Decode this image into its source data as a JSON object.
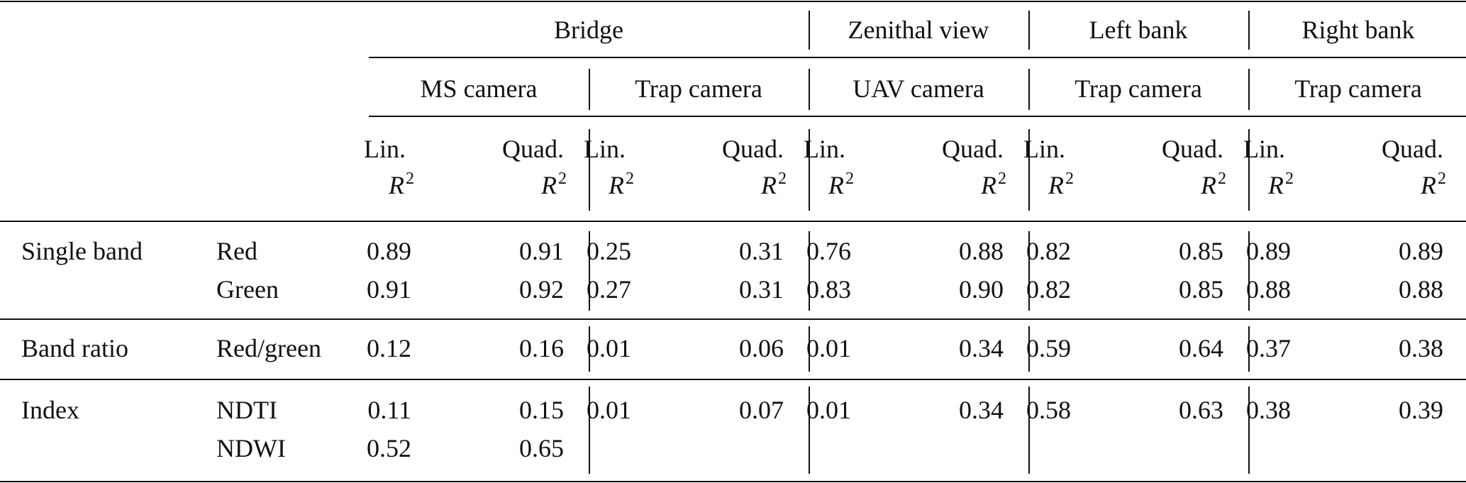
{
  "groups": [
    "Bridge",
    "Zenithal view",
    "Left bank",
    "Right bank"
  ],
  "cameras": [
    "MS camera",
    "Trap camera",
    "UAV camera",
    "Trap camera",
    "Trap camera"
  ],
  "metric_head": {
    "lin": "Lin.",
    "quad": "Quad.",
    "r": "R",
    "exp": "2"
  },
  "categories": [
    "Single band",
    "Band ratio",
    "Index"
  ],
  "bands": [
    "Red",
    "Green",
    "Red/green",
    "NDTI",
    "NDWI"
  ],
  "rows": [
    [
      "0.89",
      "0.91",
      "0.25",
      "0.31",
      "0.76",
      "0.88",
      "0.82",
      "0.85",
      "0.89",
      "0.89"
    ],
    [
      "0.91",
      "0.92",
      "0.27",
      "0.31",
      "0.83",
      "0.90",
      "0.82",
      "0.85",
      "0.88",
      "0.88"
    ],
    [
      "0.12",
      "0.16",
      "0.01",
      "0.06",
      "0.01",
      "0.34",
      "0.59",
      "0.64",
      "0.37",
      "0.38"
    ],
    [
      "0.11",
      "0.15",
      "0.01",
      "0.07",
      "0.01",
      "0.34",
      "0.58",
      "0.63",
      "0.38",
      "0.39"
    ],
    [
      "0.52",
      "0.65",
      "",
      "",
      "",
      "",
      "",
      "",
      "",
      ""
    ]
  ]
}
